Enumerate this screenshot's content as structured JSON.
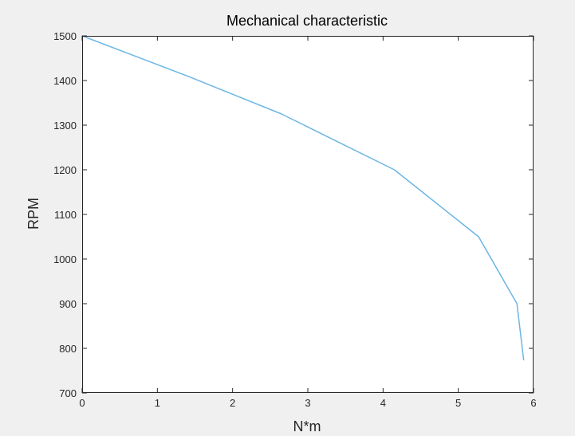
{
  "chart_data": {
    "type": "line",
    "title": "Mechanical characteristic",
    "xlabel": "N*m",
    "ylabel": "RPM",
    "xlim": [
      0,
      6
    ],
    "ylim": [
      700,
      1500
    ],
    "xticks": [
      "0",
      "1",
      "2",
      "3",
      "4",
      "5",
      "6"
    ],
    "yticks": [
      "700",
      "800",
      "900",
      "1000",
      "1100",
      "1200",
      "1300",
      "1400",
      "1500"
    ],
    "grid": false,
    "series": [
      {
        "color": "#6cb6e4",
        "x": [
          0,
          1.4,
          2.65,
          4.15,
          5.27,
          5.78,
          5.87
        ],
        "y": [
          1500,
          1410,
          1325,
          1200,
          1050,
          900,
          773
        ]
      }
    ]
  },
  "colors": {
    "figure_background": "#f0f0f0",
    "axes_background": "#ffffff",
    "axis_color": "#262626"
  }
}
